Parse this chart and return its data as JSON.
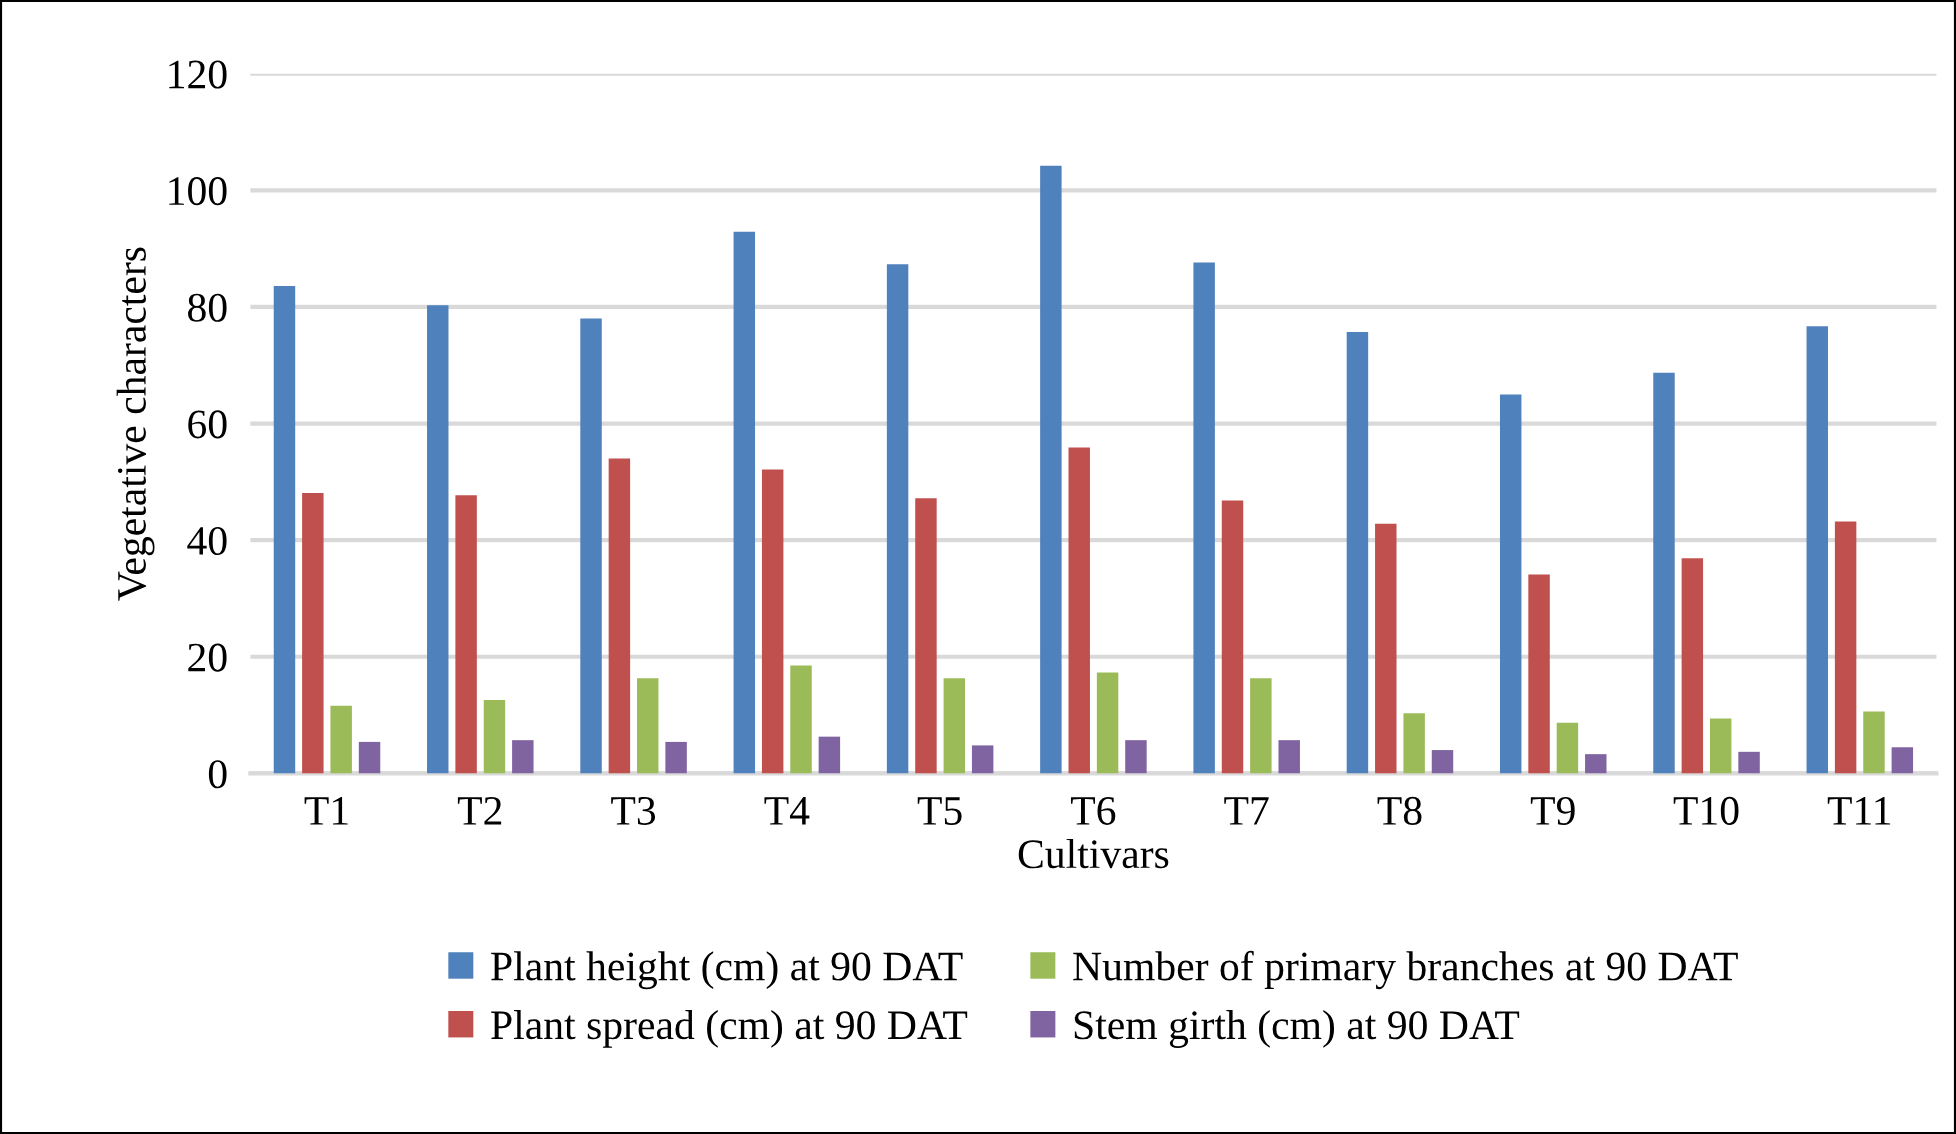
{
  "chart_data": {
    "type": "bar",
    "xlabel": "Cultivars",
    "ylabel": "Vegetative characters",
    "categories": [
      "T1",
      "T2",
      "T3",
      "T4",
      "T5",
      "T6",
      "T7",
      "T8",
      "T9",
      "T10",
      "T11"
    ],
    "series": [
      {
        "name": "Plant height (cm) at 90 DAT",
        "color": "#4f81bd",
        "values": [
          83.6,
          80.3,
          78.0,
          92.9,
          87.3,
          104.2,
          87.6,
          75.7,
          65.0,
          68.7,
          76.7
        ]
      },
      {
        "name": "Plant spread (cm) at 90 DAT",
        "color": "#c0504d",
        "values": [
          48.1,
          47.7,
          54.0,
          52.1,
          47.2,
          55.9,
          46.8,
          42.8,
          34.1,
          36.9,
          43.2
        ]
      },
      {
        "name": "Number of primary branches at 90 DAT",
        "color": "#9bbb59",
        "values": [
          11.6,
          12.6,
          16.3,
          18.5,
          16.3,
          17.3,
          16.3,
          10.3,
          8.7,
          9.4,
          10.6
        ]
      },
      {
        "name": "Stem girth (cm) at 90 DAT",
        "color": "#8064a2",
        "values": [
          5.4,
          5.7,
          5.4,
          6.3,
          4.8,
          5.7,
          5.7,
          4.0,
          3.3,
          3.7,
          4.5
        ]
      }
    ],
    "ylim": [
      0,
      120
    ],
    "yticks": [
      0,
      20,
      40,
      60,
      80,
      100,
      120
    ],
    "grid": "y",
    "legend": "bottom"
  }
}
